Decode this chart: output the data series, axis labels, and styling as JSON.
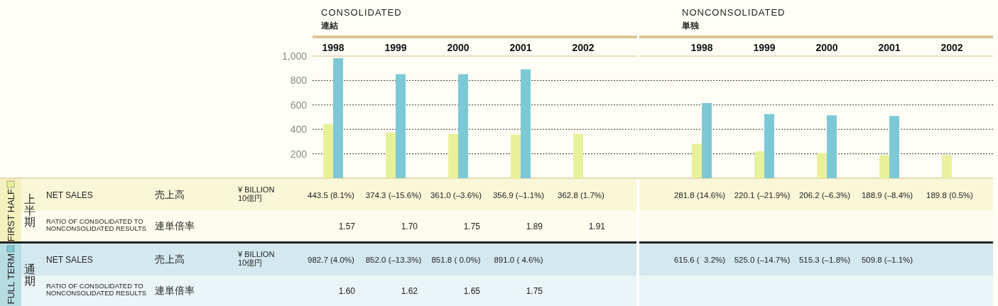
{
  "chart_data": [
    {
      "type": "bar",
      "title": "CONSOLIDATED",
      "subtitle": "連結",
      "categories": [
        "1998",
        "1999",
        "2000",
        "2001",
        "2002"
      ],
      "series": [
        {
          "name": "FIRST HALF",
          "color": "#e9f09a",
          "values": [
            443.5,
            374.3,
            361.0,
            356.9,
            362.8
          ],
          "value_labels": [
            "443.5 (8.1%)",
            "374.3 (–15.6%)",
            "361.0 (–3.6%)",
            "356.9 (–1.1%)",
            "362.8 (1.7%)"
          ]
        },
        {
          "name": "FULL TERM",
          "color": "#7cc9d5",
          "values": [
            982.7,
            852.0,
            851.8,
            891.0,
            null
          ],
          "value_labels": [
            "982.7 (4.0%)",
            "852.0 (–13.3%)",
            "851.8 ( 0.0%)",
            "891.0 ( 4.6%)",
            null
          ]
        }
      ],
      "ylim": [
        0,
        1000
      ],
      "yticks": [
        200,
        400,
        600,
        800,
        {
          "value": 1000,
          "label": "1,000"
        }
      ],
      "grid": "y",
      "legend": "bottom left",
      "annotations": [
        "上半期",
        "通期",
        "NET SALES",
        "売上高",
        "¥ BILLION 10億円",
        "RATIO OF CONSOLIDATED TO NONCONSOLIDATED RESULTS",
        "連単倍率",
        "NET SALES",
        "売上高",
        "¥ BILLION 10億円",
        "RATIO OF CONSOLIDATED TO NONCONSOLIDATED RESULTS",
        "連単倍率",
        "1.57",
        "1.70",
        "1.75",
        "1.89",
        "1.91",
        "1.60",
        "1.62",
        "1.65",
        "1.75"
      ]
    },
    {
      "type": "bar",
      "title": "NONCONSOLIDATED",
      "subtitle": "単独",
      "categories": [
        "1998",
        "1999",
        "2000",
        "2001",
        "2002"
      ],
      "series": [
        {
          "color": "#e9f09a",
          "values": [
            281.8,
            220.1,
            206.2,
            188.9,
            189.8
          ],
          "value_labels": [
            "281.8 (14.6%)",
            "220.1 (–21.9%)",
            "206.2 (–6.3%)",
            "188.9 (–8.4%)",
            "189.8 (0.5%)"
          ]
        },
        {
          "color": "#7cc9d5",
          "values": [
            615.6,
            525.0,
            515.3,
            509.8,
            null
          ],
          "value_labels": [
            "615.6 (  3.2%)",
            "525.0 (–14.7%)",
            "515.3 (–1.8%)",
            "509.8 (–1.1%)",
            null
          ]
        }
      ],
      "ylim": [
        0,
        1000
      ],
      "yticks": [
        200,
        400,
        600,
        800,
        1000
      ],
      "grid": "y",
      "tick_labels": "x"
    }
  ]
}
